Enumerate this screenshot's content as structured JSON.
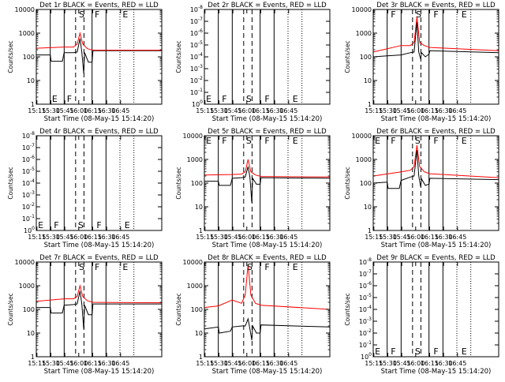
{
  "figure": {
    "x_tick_labels": [
      "15:15",
      "15:30",
      "15:45",
      "16:00",
      "16:15",
      "16:30",
      "16:45"
    ],
    "xlabel": "Start Time (08-May-15 15:14:20)",
    "ylabel": "Counts/sec",
    "colors": {
      "events": "#000000",
      "lld": "#ff0000",
      "axes": "#000000"
    }
  },
  "chart_data": [
    {
      "type": "line",
      "title": "Det 1r BLACK = Events, RED = LLD",
      "empty": false,
      "ylog": true,
      "ylim_exp": [
        0,
        4
      ],
      "y_tick_labels": [
        "1",
        "10",
        "100",
        "1000",
        "10000"
      ],
      "x_minutes": [
        0,
        135
      ],
      "solid_lines": [
        15,
        30,
        60,
        75
      ],
      "dashed_lines": [
        42.3,
        51.3
      ],
      "dotted_lines": [
        90,
        105
      ],
      "region_labels": [
        {
          "text": "E",
          "x": 16,
          "pos": "bottom"
        },
        {
          "text": "F",
          "x": 32,
          "pos": "bottom"
        },
        {
          "text": "S",
          "x": 45,
          "pos": "top"
        },
        {
          "text": "F",
          "x": 62,
          "pos": "top"
        },
        {
          "text": "E",
          "x": 92,
          "pos": "top"
        }
      ],
      "series": [
        {
          "name": "Events",
          "color": "#000000",
          "points": [
            [
              0,
              120
            ],
            [
              15,
              120
            ],
            [
              16,
              65
            ],
            [
              28,
              65
            ],
            [
              30,
              150
            ],
            [
              40,
              150
            ],
            [
              44,
              160
            ],
            [
              47,
              600
            ],
            [
              49,
              160
            ],
            [
              51,
              20
            ],
            [
              52,
              150
            ],
            [
              56,
              60
            ],
            [
              60,
              60
            ],
            [
              61,
              180
            ],
            [
              135,
              180
            ]
          ]
        },
        {
          "name": "LLD",
          "color": "#ff0000",
          "points": [
            [
              0,
              230
            ],
            [
              30,
              260
            ],
            [
              40,
              260
            ],
            [
              44,
              350
            ],
            [
              47,
              1000
            ],
            [
              50,
              350
            ],
            [
              55,
              220
            ],
            [
              61,
              190
            ],
            [
              135,
              190
            ]
          ]
        }
      ]
    },
    {
      "type": "line",
      "title": "Det 2r BLACK = Events, RED = LLD",
      "empty": true,
      "ylog": true,
      "ylim_exp": [
        0,
        -8
      ],
      "y_tick_labels": [
        "10^0",
        "10^-1",
        "10^-2",
        "10^-3",
        "10^-4",
        "10^-5",
        "10^-6",
        "10^-7",
        "10^-8"
      ],
      "x_minutes": [
        0,
        135
      ],
      "solid_lines": [
        15,
        30,
        60,
        75
      ],
      "dashed_lines": [
        42.3,
        51.3
      ],
      "dotted_lines": [
        90,
        105
      ],
      "region_labels": [
        {
          "text": "E",
          "x": 1,
          "pos": "bottom"
        },
        {
          "text": "F",
          "x": 18,
          "pos": "bottom"
        },
        {
          "text": "S",
          "x": 44,
          "pos": "bottom"
        },
        {
          "text": "F",
          "x": 64,
          "pos": "bottom"
        },
        {
          "text": "E",
          "x": 94,
          "pos": "bottom"
        }
      ],
      "series": []
    },
    {
      "type": "line",
      "title": "Det 3r BLACK = Events, RED = LLD",
      "empty": false,
      "ylog": true,
      "ylim_exp": [
        0,
        4
      ],
      "y_tick_labels": [
        "1",
        "10",
        "100",
        "1000",
        "10000"
      ],
      "x_minutes": [
        0,
        135
      ],
      "solid_lines": [
        15,
        30,
        60,
        75
      ],
      "dashed_lines": [
        42.3,
        51.3
      ],
      "dotted_lines": [
        90,
        105
      ],
      "region_labels": [
        {
          "text": "F",
          "x": 18,
          "pos": "top"
        },
        {
          "text": "S",
          "x": 45,
          "pos": "top"
        },
        {
          "text": "F",
          "x": 64,
          "pos": "top"
        },
        {
          "text": "E",
          "x": 94,
          "pos": "top"
        }
      ],
      "series": [
        {
          "name": "Events",
          "color": "#000000",
          "points": [
            [
              0,
              100
            ],
            [
              15,
              110
            ],
            [
              30,
              120
            ],
            [
              40,
              150
            ],
            [
              44,
              160
            ],
            [
              47,
              3000
            ],
            [
              49,
              160
            ],
            [
              51,
              80
            ],
            [
              52,
              150
            ],
            [
              56,
              100
            ],
            [
              60,
              130
            ],
            [
              61,
              180
            ],
            [
              135,
              150
            ]
          ]
        },
        {
          "name": "LLD",
          "color": "#ff0000",
          "points": [
            [
              0,
              160
            ],
            [
              30,
              300
            ],
            [
              40,
              300
            ],
            [
              44,
              400
            ],
            [
              47,
              5000
            ],
            [
              50,
              400
            ],
            [
              55,
              300
            ],
            [
              61,
              250
            ],
            [
              135,
              180
            ]
          ]
        }
      ]
    },
    {
      "type": "line",
      "title": "Det 4r BLACK = Events, RED = LLD",
      "empty": true,
      "ylog": true,
      "ylim_exp": [
        0,
        -8
      ],
      "y_tick_labels": [
        "10^0",
        "10^-1",
        "10^-2",
        "10^-3",
        "10^-4",
        "10^-5",
        "10^-6",
        "10^-7",
        "10^-8"
      ],
      "x_minutes": [
        0,
        135
      ],
      "solid_lines": [
        15,
        30,
        60,
        75
      ],
      "dashed_lines": [
        42.3,
        51.3
      ],
      "dotted_lines": [
        90,
        105
      ],
      "region_labels": [
        {
          "text": "E",
          "x": 1,
          "pos": "bottom"
        },
        {
          "text": "F",
          "x": 18,
          "pos": "bottom"
        },
        {
          "text": "S",
          "x": 44,
          "pos": "bottom"
        },
        {
          "text": "F",
          "x": 64,
          "pos": "bottom"
        },
        {
          "text": "E",
          "x": 94,
          "pos": "bottom"
        }
      ],
      "series": []
    },
    {
      "type": "line",
      "title": "Det 5r BLACK = Events, RED = LLD",
      "empty": false,
      "ylog": true,
      "ylim_exp": [
        0,
        4
      ],
      "y_tick_labels": [
        "1",
        "10",
        "100",
        "1000",
        "10000"
      ],
      "x_minutes": [
        0,
        135
      ],
      "solid_lines": [
        15,
        30,
        60,
        75
      ],
      "dashed_lines": [
        42.3,
        51.3
      ],
      "dotted_lines": [
        90,
        105
      ],
      "region_labels": [
        {
          "text": "E",
          "x": 1,
          "pos": "top"
        },
        {
          "text": "F",
          "x": 18,
          "pos": "top"
        },
        {
          "text": "S",
          "x": 44,
          "pos": "top"
        },
        {
          "text": "F",
          "x": 64,
          "pos": "top"
        },
        {
          "text": "E",
          "x": 94,
          "pos": "top"
        }
      ],
      "series": [
        {
          "name": "Events",
          "color": "#000000",
          "points": [
            [
              0,
              120
            ],
            [
              15,
              120
            ],
            [
              16,
              80
            ],
            [
              28,
              80
            ],
            [
              30,
              160
            ],
            [
              40,
              170
            ],
            [
              44,
              180
            ],
            [
              47,
              500
            ],
            [
              49,
              180
            ],
            [
              51,
              15
            ],
            [
              52,
              160
            ],
            [
              56,
              90
            ],
            [
              60,
              90
            ],
            [
              61,
              170
            ],
            [
              135,
              160
            ]
          ]
        },
        {
          "name": "LLD",
          "color": "#ff0000",
          "points": [
            [
              0,
              220
            ],
            [
              30,
              230
            ],
            [
              40,
              240
            ],
            [
              44,
              300
            ],
            [
              47,
              1000
            ],
            [
              50,
              300
            ],
            [
              55,
              220
            ],
            [
              61,
              190
            ],
            [
              135,
              180
            ]
          ]
        }
      ]
    },
    {
      "type": "line",
      "title": "Det 6r BLACK = Events, RED = LLD",
      "empty": false,
      "ylog": true,
      "ylim_exp": [
        0,
        4
      ],
      "y_tick_labels": [
        "1",
        "10",
        "100",
        "1000",
        "10000"
      ],
      "x_minutes": [
        0,
        135
      ],
      "solid_lines": [
        15,
        30,
        60,
        75
      ],
      "dashed_lines": [
        42.3,
        51.3
      ],
      "dotted_lines": [
        90,
        105
      ],
      "region_labels": [
        {
          "text": "E",
          "x": 1,
          "pos": "top"
        },
        {
          "text": "F",
          "x": 18,
          "pos": "top"
        },
        {
          "text": "S",
          "x": 44,
          "pos": "top"
        },
        {
          "text": "F",
          "x": 64,
          "pos": "top"
        },
        {
          "text": "E",
          "x": 94,
          "pos": "top"
        }
      ],
      "series": [
        {
          "name": "Events",
          "color": "#000000",
          "points": [
            [
              0,
              100
            ],
            [
              15,
              110
            ],
            [
              16,
              60
            ],
            [
              28,
              60
            ],
            [
              30,
              130
            ],
            [
              40,
              180
            ],
            [
              44,
              200
            ],
            [
              47,
              2500
            ],
            [
              49,
              200
            ],
            [
              51,
              70
            ],
            [
              52,
              150
            ],
            [
              56,
              80
            ],
            [
              60,
              90
            ],
            [
              61,
              160
            ],
            [
              135,
              140
            ]
          ]
        },
        {
          "name": "LLD",
          "color": "#ff0000",
          "points": [
            [
              0,
              200
            ],
            [
              30,
              300
            ],
            [
              40,
              350
            ],
            [
              44,
              500
            ],
            [
              47,
              4000
            ],
            [
              50,
              500
            ],
            [
              55,
              300
            ],
            [
              61,
              250
            ],
            [
              135,
              170
            ]
          ]
        }
      ]
    },
    {
      "type": "line",
      "title": "Det 7r BLACK = Events, RED = LLD",
      "empty": false,
      "ylog": true,
      "ylim_exp": [
        0,
        4
      ],
      "y_tick_labels": [
        "1",
        "10",
        "100",
        "1000",
        "10000"
      ],
      "x_minutes": [
        0,
        135
      ],
      "solid_lines": [
        15,
        30,
        60,
        75
      ],
      "dashed_lines": [
        42.3,
        51.3
      ],
      "dotted_lines": [
        90,
        105
      ],
      "region_labels": [
        {
          "text": "S",
          "x": 45,
          "pos": "top"
        },
        {
          "text": "F",
          "x": 62,
          "pos": "top"
        },
        {
          "text": "E",
          "x": 92,
          "pos": "top"
        }
      ],
      "series": [
        {
          "name": "Events",
          "color": "#000000",
          "points": [
            [
              0,
              120
            ],
            [
              15,
              120
            ],
            [
              16,
              70
            ],
            [
              28,
              70
            ],
            [
              30,
              150
            ],
            [
              40,
              160
            ],
            [
              44,
              170
            ],
            [
              47,
              600
            ],
            [
              49,
              170
            ],
            [
              51,
              15
            ],
            [
              52,
              150
            ],
            [
              56,
              60
            ],
            [
              60,
              60
            ],
            [
              61,
              170
            ],
            [
              135,
              170
            ]
          ]
        },
        {
          "name": "LLD",
          "color": "#ff0000",
          "points": [
            [
              0,
              220
            ],
            [
              30,
              280
            ],
            [
              40,
              280
            ],
            [
              44,
              350
            ],
            [
              47,
              1000
            ],
            [
              50,
              350
            ],
            [
              55,
              230
            ],
            [
              61,
              200
            ],
            [
              135,
              190
            ]
          ]
        }
      ]
    },
    {
      "type": "line",
      "title": "Det 8r BLACK = Events, RED = LLD",
      "empty": false,
      "ylog": true,
      "ylim_exp": [
        0,
        4
      ],
      "y_tick_labels": [
        "1",
        "10",
        "100",
        "1000",
        "10000"
      ],
      "x_minutes": [
        0,
        135
      ],
      "solid_lines": [
        15,
        30,
        60,
        75
      ],
      "dashed_lines": [
        42.3,
        51.3
      ],
      "dotted_lines": [
        90,
        105
      ],
      "region_labels": [
        {
          "text": "S",
          "x": 45,
          "pos": "top"
        },
        {
          "text": "F",
          "x": 64,
          "pos": "top"
        },
        {
          "text": "E",
          "x": 94,
          "pos": "top"
        }
      ],
      "series": [
        {
          "name": "Events",
          "color": "#000000",
          "points": [
            [
              0,
              15
            ],
            [
              15,
              18
            ],
            [
              16,
              10
            ],
            [
              28,
              12
            ],
            [
              30,
              18
            ],
            [
              40,
              20
            ],
            [
              44,
              20
            ],
            [
              47,
              40
            ],
            [
              49,
              15
            ],
            [
              51,
              5
            ],
            [
              52,
              20
            ],
            [
              56,
              10
            ],
            [
              60,
              10
            ],
            [
              61,
              22
            ],
            [
              135,
              18
            ]
          ]
        },
        {
          "name": "LLD",
          "color": "#ff0000",
          "points": [
            [
              0,
              120
            ],
            [
              15,
              140
            ],
            [
              30,
              250
            ],
            [
              40,
              180
            ],
            [
              44,
              400
            ],
            [
              47,
              8000
            ],
            [
              50,
              400
            ],
            [
              55,
              180
            ],
            [
              61,
              150
            ],
            [
              135,
              100
            ]
          ]
        }
      ]
    },
    {
      "type": "line",
      "title": "Det 9r BLACK = Events, RED = LLD",
      "empty": true,
      "ylog": true,
      "ylim_exp": [
        0,
        -8
      ],
      "y_tick_labels": [
        "10^0",
        "10^-1",
        "10^-2",
        "10^-3",
        "10^-4",
        "10^-5",
        "10^-6",
        "10^-7",
        "10^-8"
      ],
      "x_minutes": [
        0,
        135
      ],
      "solid_lines": [
        15,
        30,
        60,
        75
      ],
      "dashed_lines": [
        42.3,
        51.3
      ],
      "dotted_lines": [
        90,
        105
      ],
      "region_labels": [
        {
          "text": "E",
          "x": 1,
          "pos": "bottom"
        },
        {
          "text": "F",
          "x": 18,
          "pos": "bottom"
        },
        {
          "text": "S",
          "x": 44,
          "pos": "bottom"
        },
        {
          "text": "F",
          "x": 64,
          "pos": "bottom"
        },
        {
          "text": "E",
          "x": 94,
          "pos": "bottom"
        }
      ],
      "series": []
    }
  ]
}
